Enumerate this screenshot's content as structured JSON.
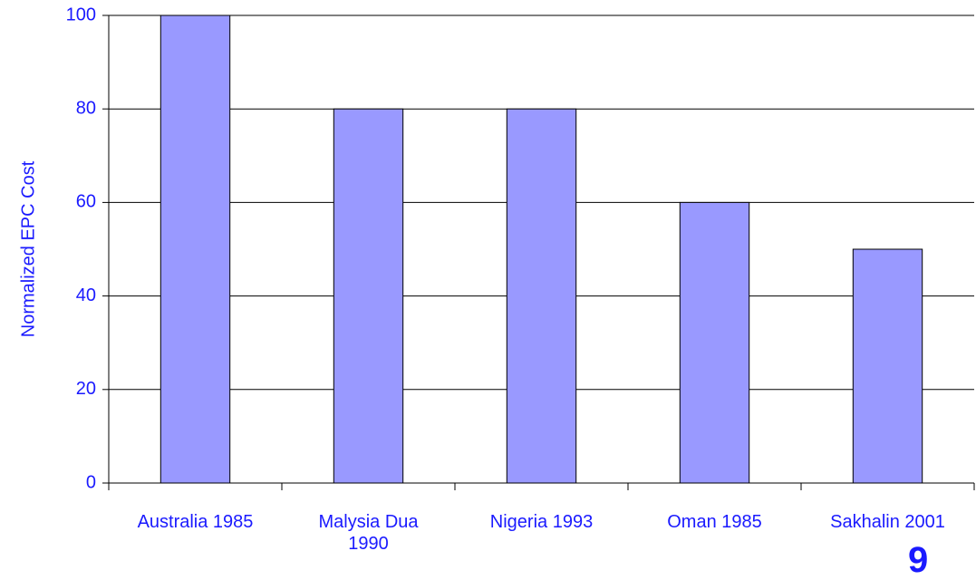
{
  "chart_data": {
    "type": "bar",
    "y_label": "Normalized EPC Cost",
    "categories": [
      "Australia 1985",
      "Malysia Dua 1990",
      "Nigeria 1993",
      "Oman 1985",
      "Sakhalin 2001"
    ],
    "values": [
      100,
      80,
      80,
      60,
      50
    ],
    "color": "#9999ff",
    "ylim": [
      0,
      100
    ],
    "yticks": [
      0,
      20,
      40,
      60,
      80,
      100
    ],
    "grid": true
  },
  "page_number": "9"
}
